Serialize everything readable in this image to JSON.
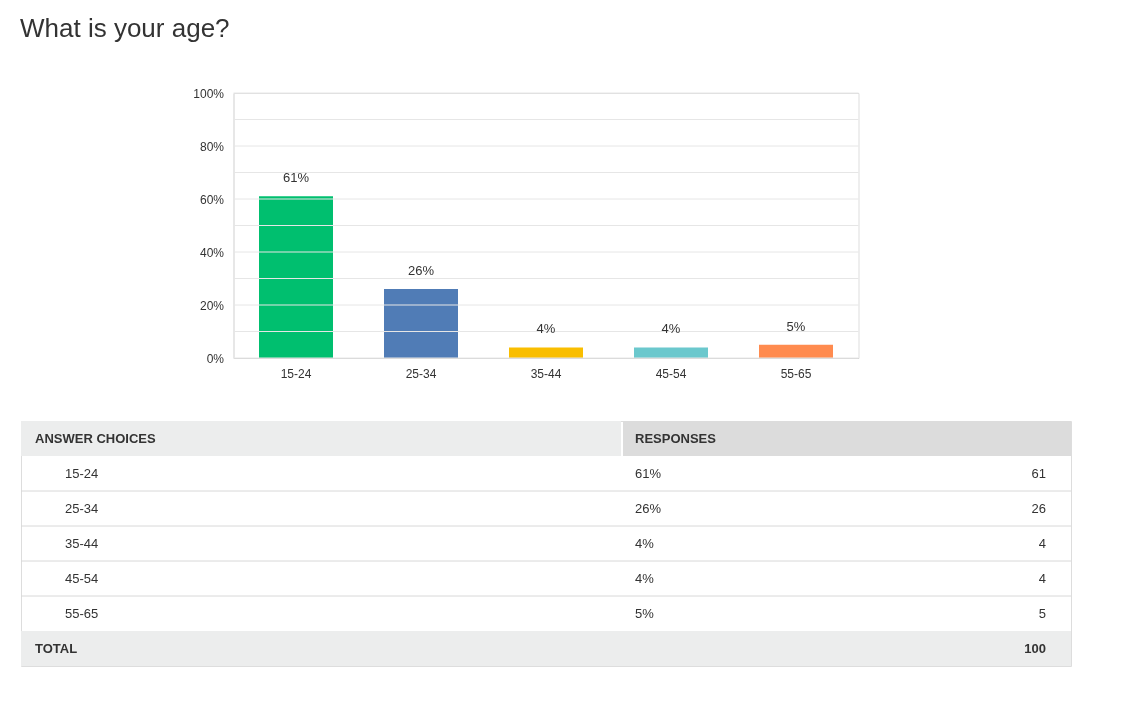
{
  "chart_data": {
    "type": "bar",
    "title": "What is your age?",
    "categories": [
      "15-24",
      "25-34",
      "35-44",
      "45-54",
      "55-65"
    ],
    "values": [
      61,
      26,
      4,
      4,
      5
    ],
    "colors": [
      "#00bf6f",
      "#507cb6",
      "#f9be00",
      "#6bc8cd",
      "#ff8b4f"
    ],
    "value_labels": [
      "61%",
      "26%",
      "4%",
      "4%",
      "5%"
    ],
    "ylim": [
      0,
      100
    ],
    "yticks": [
      {
        "value": 0,
        "label": "0%"
      },
      {
        "value": 10,
        "label": null
      },
      {
        "value": 20,
        "label": "20%"
      },
      {
        "value": 30,
        "label": null
      },
      {
        "value": 40,
        "label": "40%"
      },
      {
        "value": 50,
        "label": null
      },
      {
        "value": 60,
        "label": "60%"
      },
      {
        "value": 70,
        "label": null
      },
      {
        "value": 80,
        "label": "80%"
      },
      {
        "value": 90,
        "label": null
      },
      {
        "value": 100,
        "label": "100%"
      }
    ],
    "grid": "y",
    "annotations": [
      "ANSWER CHOICES",
      "RESPONSES",
      "TOTAL",
      "100",
      "61",
      "26",
      "4",
      "4",
      "5"
    ]
  }
}
